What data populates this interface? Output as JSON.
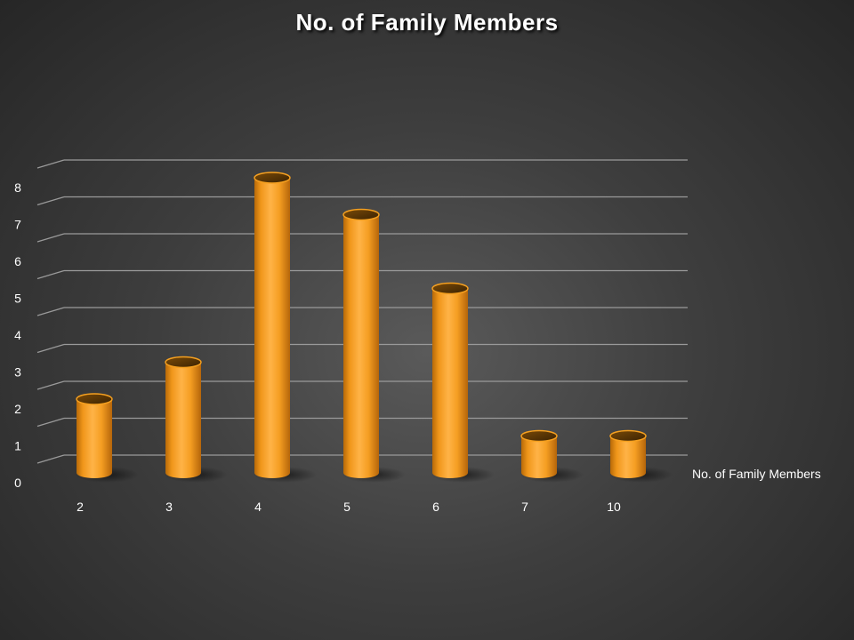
{
  "chart_data": {
    "type": "bar",
    "style": "3d-cylinder",
    "title": "No. of Family Members",
    "xlabel": "No. of Family Members",
    "ylabel": "",
    "categories": [
      "2",
      "3",
      "4",
      "5",
      "6",
      "7",
      "10"
    ],
    "values": [
      2,
      3,
      8,
      7,
      5,
      1,
      1
    ],
    "ylim": [
      0,
      8
    ],
    "yticks": [
      0,
      1,
      2,
      3,
      4,
      5,
      6,
      7,
      8
    ],
    "grid": true,
    "legend": "none",
    "colors": {
      "bar": "#f5a020",
      "background": "#404040",
      "grid": "#9a9a9a",
      "text": "#ffffff"
    }
  }
}
